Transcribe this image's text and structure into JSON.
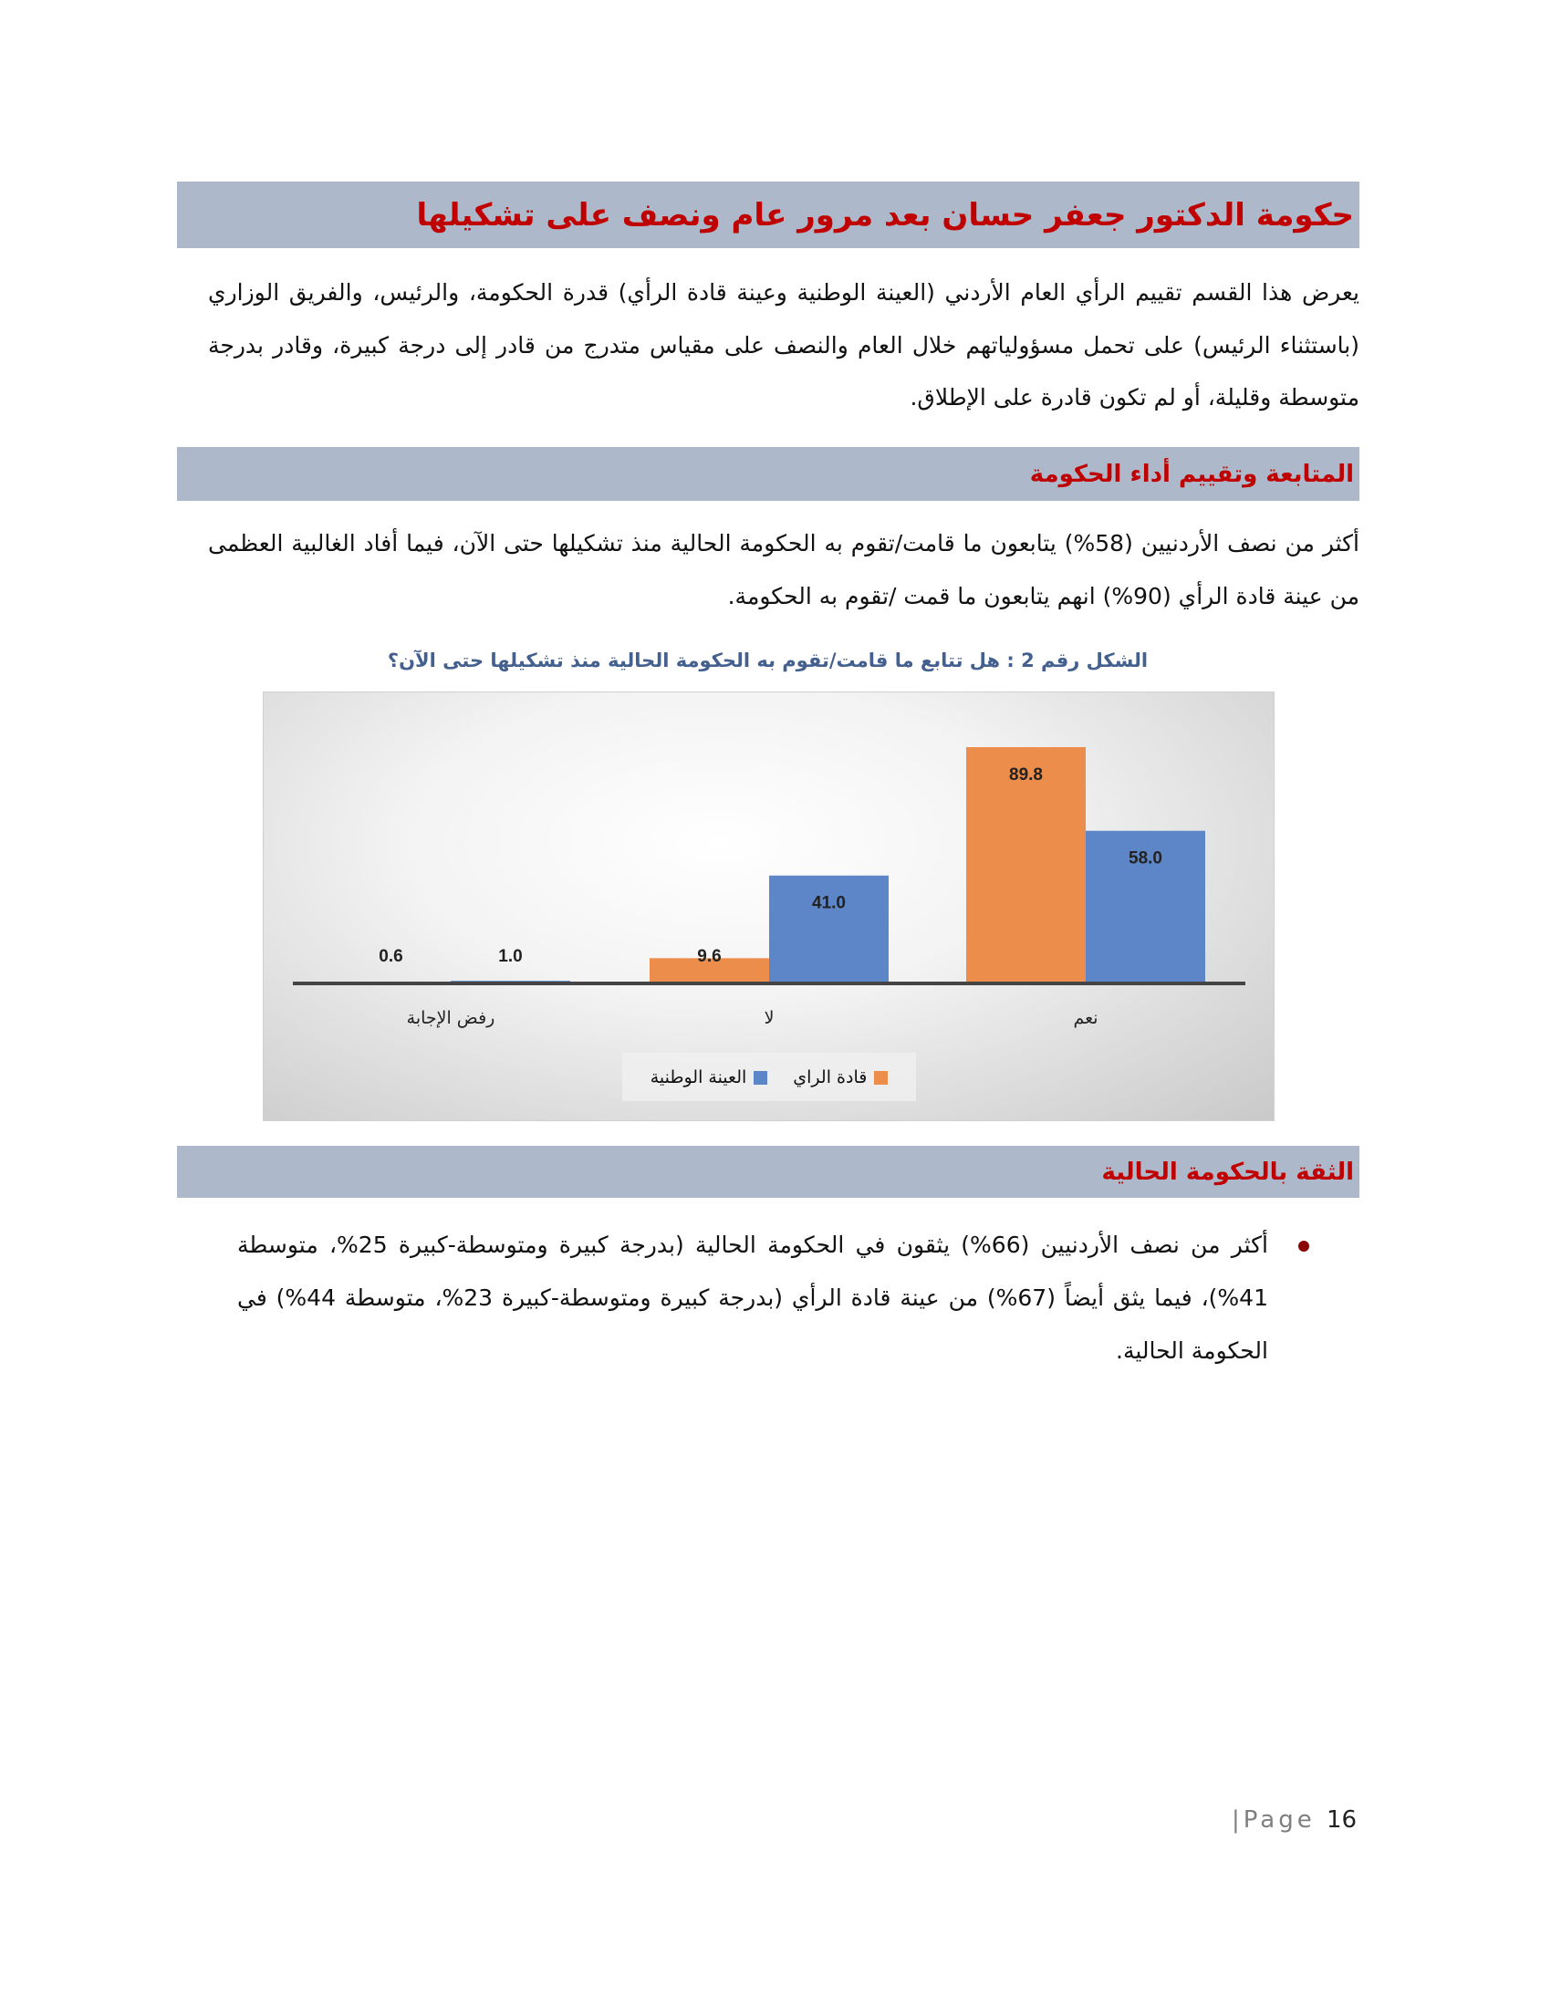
{
  "title": "حكومة الدكتور جعفر حسان بعد مرور عام ونصف على تشكيلها",
  "intro": "يعرض هذا القسم تقييم الرأي العام الأردني (العينة الوطنية وعينة قادة الرأي) قدرة الحكومة، والرئيس، والفريق الوزاري (باستثناء الرئيس) على تحمل مسؤولياتهم خلال العام والنصف على مقياس متدرج من قادر إلى درجة كبيرة، وقادر بدرجة متوسطة وقليلة، أو لم تكون قادرة على الإطلاق.",
  "section1": {
    "heading": "المتابعة وتقييم أداء الحكومة",
    "text": "أكثر من نصف الأردنيين (58%) يتابعون ما قامت/تقوم به الحكومة الحالية منذ تشكيلها حتى الآن، فيما أفاد الغالبية العظمى من عينة قادة الرأي (90%) انهم يتابعون ما قمت /تقوم به الحكومة."
  },
  "figure_caption": "الشكل رقم 2 : هل تتابع ما قامت/تقوم به الحكومة الحالية منذ تشكيلها حتى الآن؟",
  "chart_data": {
    "type": "bar",
    "categories": [
      "نعم",
      "لا",
      "رفض الإجابة"
    ],
    "series": [
      {
        "name": "قادة الراي",
        "color": "#ed8d4c",
        "values": [
          89.8,
          9.6,
          0.6
        ],
        "labels": [
          "89.8",
          "9.6",
          "0.6"
        ]
      },
      {
        "name": "العينة الوطنية",
        "color": "#5d86c9",
        "values": [
          58.0,
          41.0,
          1.0
        ],
        "labels": [
          "58.0",
          "41.0",
          "1.0"
        ]
      }
    ],
    "ylim": [
      0,
      100
    ],
    "grid": false,
    "legend": "bottom",
    "direction": "rtl"
  },
  "section2": {
    "heading": "الثقة بالحكومة الحالية",
    "bullets": [
      "أكثر من نصف الأردنيين (66%) يثقون في الحكومة الحالية (بدرجة كبيرة ومتوسطة-كبيرة 25%، متوسطة 41%)، فيما يثق أيضاً (67%) من عينة قادة الرأي (بدرجة كبيرة ومتوسطة-كبيرة 23%، متوسطة 44%) في الحكومة الحالية."
    ]
  },
  "footer": {
    "page_label": "|Page",
    "page_number": "16"
  }
}
